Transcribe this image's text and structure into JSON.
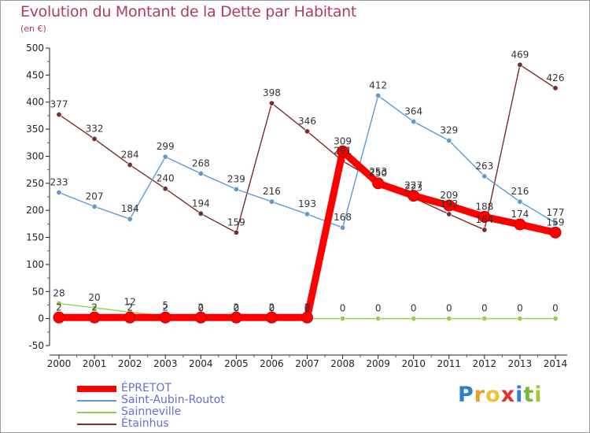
{
  "header": {
    "title": "Evolution du Montant de la Dette par Habitant",
    "subtitle": "(en €)"
  },
  "legend": {
    "items": [
      {
        "label": "ÉPRETOT",
        "color": "#ff0000"
      },
      {
        "label": "Saint-Aubin-Routot",
        "color": "#5b9bd5"
      },
      {
        "label": "Sainneville",
        "color": "#92d050"
      },
      {
        "label": "Étainhus",
        "color": "#7b2c2c"
      }
    ]
  },
  "logo": {
    "letters": [
      "P",
      "r",
      "o",
      "x",
      "i",
      "t",
      "i"
    ],
    "colors": [
      "#2f7fd1",
      "#f29b26",
      "#f2c12e",
      "#e0332c",
      "#2f7fd1",
      "#73b935",
      "#a0c830"
    ]
  },
  "chart_data": {
    "type": "line",
    "title": "Evolution du Montant de la Dette par Habitant",
    "subtitle": "(en €)",
    "x": [
      2000,
      2001,
      2002,
      2003,
      2004,
      2005,
      2006,
      2007,
      2008,
      2009,
      2010,
      2011,
      2012,
      2013,
      2014
    ],
    "ylim": [
      -50,
      500
    ],
    "yticks": [
      -50,
      0,
      50,
      100,
      150,
      200,
      250,
      300,
      350,
      400,
      450,
      500
    ],
    "grid": false,
    "legend_position": "bottom-left",
    "series": [
      {
        "name": "ÉPRETOT",
        "color": "#ff0000",
        "values": [
          2,
          2,
          2,
          2,
          2,
          2,
          2,
          2,
          309,
          250,
          227,
          209,
          188,
          174,
          159
        ],
        "labels": [
          "2",
          "2",
          "2",
          "2",
          "2",
          "2",
          "2",
          "2",
          "309",
          "250",
          "227",
          "209",
          "188",
          "174",
          "159"
        ]
      },
      {
        "name": "Saint-Aubin-Routot",
        "color": "#5b9bd5",
        "values": [
          233,
          207,
          184,
          299,
          268,
          239,
          216,
          193,
          168,
          412,
          364,
          329,
          263,
          216,
          177
        ],
        "labels": [
          "233",
          "207",
          "184",
          "299",
          "268",
          "239",
          "216",
          "193",
          "168",
          "412",
          "364",
          "329",
          "263",
          "216",
          "177"
        ]
      },
      {
        "name": "Sainneville",
        "color": "#92d050",
        "values": [
          28,
          20,
          12,
          5,
          0,
          0,
          0,
          0,
          0,
          0,
          0,
          0,
          0,
          0,
          0
        ],
        "labels": [
          "28",
          "20",
          "12",
          "5",
          "0",
          "0",
          "0",
          "0",
          "0",
          "0",
          "0",
          "0",
          "0",
          "0",
          "0"
        ]
      },
      {
        "name": "Étainhus",
        "color": "#7b2c2c",
        "values": [
          377,
          332,
          284,
          240,
          194,
          159,
          398,
          346,
          291,
          253,
          223,
          193,
          164,
          469,
          426
        ],
        "labels": [
          "377",
          "332",
          "284",
          "240",
          "194",
          "159",
          "398",
          "346",
          "291",
          "253",
          "223",
          "193",
          "164",
          "469",
          "426"
        ]
      }
    ]
  }
}
